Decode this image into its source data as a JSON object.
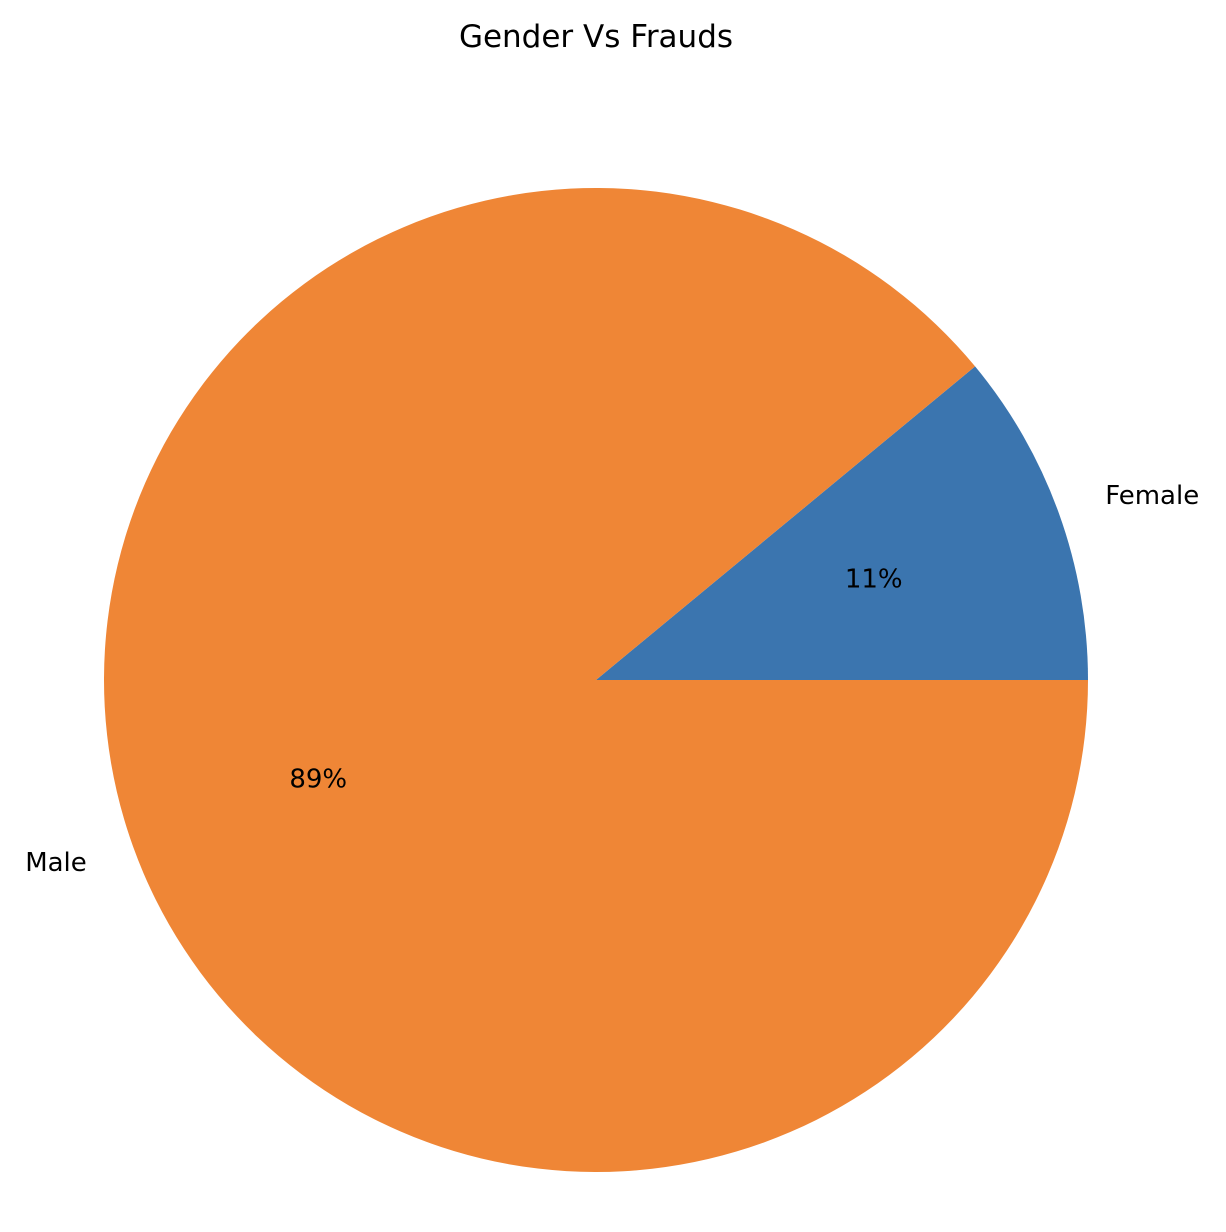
{
  "chart_data": {
    "type": "pie",
    "title": "Gender Vs Frauds",
    "slices": [
      {
        "label": "Female",
        "value": 11,
        "pct_label": "11%",
        "color": "#3b75af"
      },
      {
        "label": "Male",
        "value": 89,
        "pct_label": "89%",
        "color": "#ef8636"
      }
    ],
    "start_angle_deg": 0,
    "direction": "counterclockwise"
  }
}
